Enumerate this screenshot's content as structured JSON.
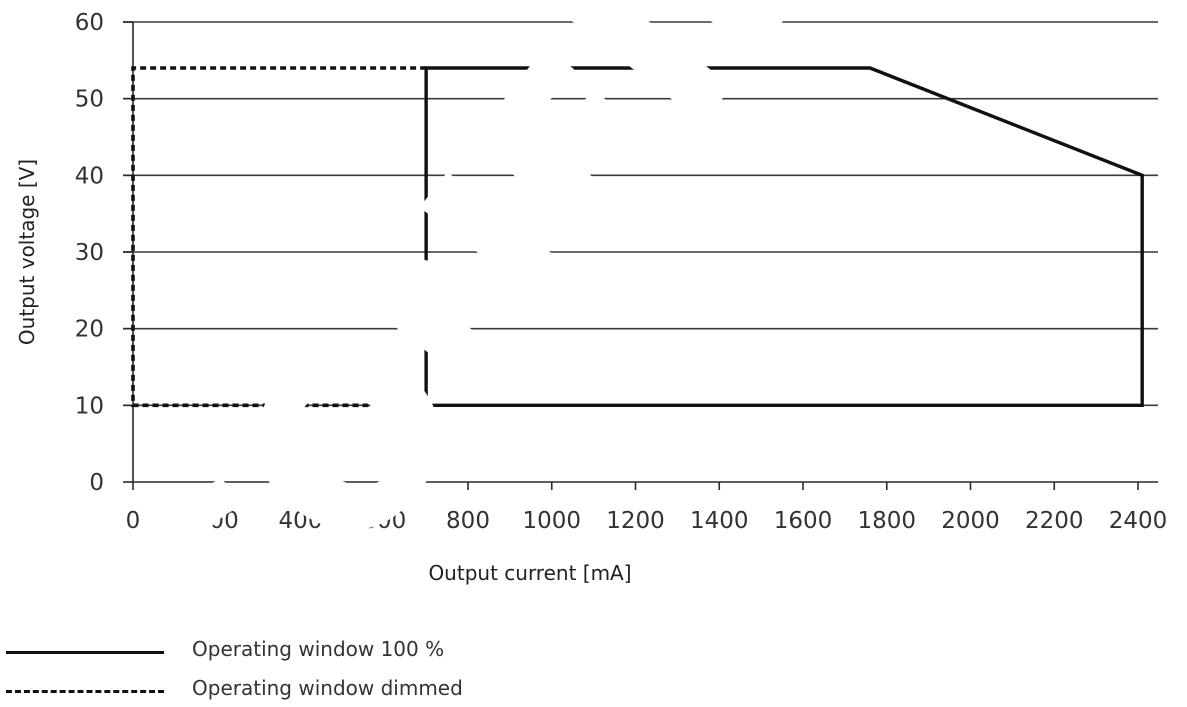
{
  "chart_data": {
    "type": "line",
    "xlabel": "Output current [mA]",
    "ylabel": "Output voltage [V]",
    "xlim": [
      0,
      2450
    ],
    "ylim": [
      0,
      60
    ],
    "x_ticks": [
      0,
      200,
      400,
      600,
      800,
      1000,
      1200,
      1400,
      1600,
      1800,
      2000,
      2200,
      2400
    ],
    "y_ticks": [
      0,
      10,
      20,
      30,
      40,
      50,
      60
    ],
    "grid": "horizontal",
    "series": [
      {
        "name": "Operating window 100 %",
        "style": "solid",
        "points": [
          [
            700,
            10
          ],
          [
            700,
            54
          ],
          [
            1760,
            54
          ],
          [
            2410,
            40
          ],
          [
            2410,
            10
          ],
          [
            700,
            10
          ]
        ]
      },
      {
        "name": "Operating window dimmed",
        "style": "dashed",
        "points": [
          [
            700,
            54
          ],
          [
            0,
            54
          ],
          [
            0,
            10
          ],
          [
            700,
            10
          ]
        ]
      }
    ],
    "legend_position": "bottom-left"
  },
  "legend": {
    "solid_label": "Operating window 100 %",
    "dashed_label": "Operating window dimmed"
  },
  "watermark": {
    "text": "CONFIDENTIAL",
    "color": "#ffffff"
  }
}
